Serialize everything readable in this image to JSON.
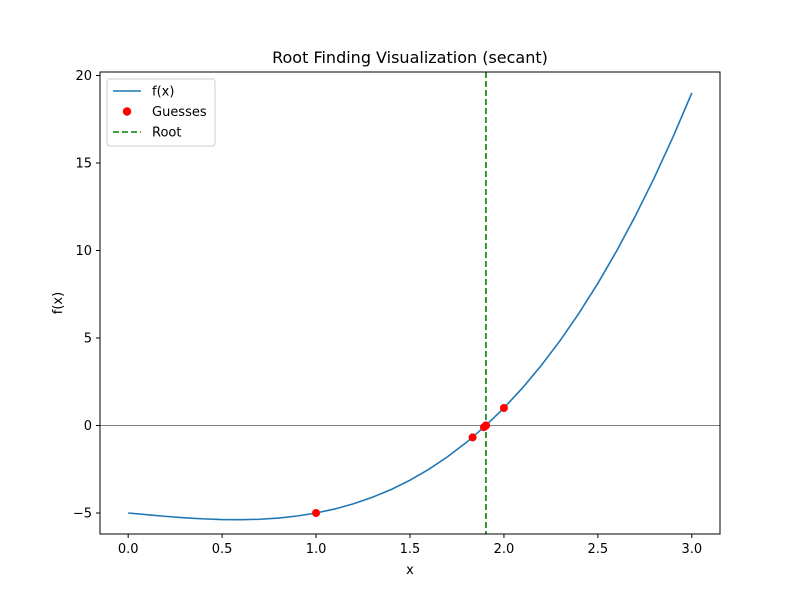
{
  "chart_data": {
    "type": "line",
    "title": "Root Finding Visualization (secant)",
    "xlabel": "x",
    "ylabel": "f(x)",
    "xlim": [
      -0.15,
      3.15
    ],
    "ylim": [
      -6.2,
      20.2
    ],
    "xticks": [
      0.0,
      0.5,
      1.0,
      1.5,
      2.0,
      2.5,
      3.0
    ],
    "xtick_labels": [
      "0.0",
      "0.5",
      "1.0",
      "1.5",
      "2.0",
      "2.5",
      "3.0"
    ],
    "yticks": [
      -5,
      0,
      5,
      10,
      15,
      20
    ],
    "ytick_labels": [
      "−5",
      "0",
      "5",
      "10",
      "15",
      "20"
    ],
    "grid": false,
    "legend_position": "upper-left",
    "series": [
      {
        "name": "f(x)",
        "kind": "line",
        "color": "#1f77b4",
        "x": [
          0.0,
          0.1,
          0.2,
          0.3,
          0.4,
          0.5,
          0.6,
          0.7,
          0.8,
          0.9,
          1.0,
          1.1,
          1.2,
          1.3,
          1.4,
          1.5,
          1.6,
          1.7,
          1.8,
          1.9,
          2.0,
          2.1,
          2.2,
          2.3,
          2.4,
          2.5,
          2.6,
          2.7,
          2.8,
          2.9,
          3.0
        ],
        "y": [
          -5.0,
          -5.099,
          -5.192,
          -5.273,
          -5.336,
          -5.375,
          -5.384,
          -5.357,
          -5.288,
          -5.171,
          -5.0,
          -4.769,
          -4.472,
          -4.103,
          -3.656,
          -3.125,
          -2.504,
          -1.787,
          -0.968,
          -0.041,
          1.0,
          2.161,
          3.448,
          4.867,
          6.424,
          8.125,
          9.976,
          11.983,
          14.152,
          16.489,
          19.0
        ]
      },
      {
        "name": "Guesses",
        "kind": "scatter",
        "color": "#ff0000",
        "x": [
          1.0,
          2.0,
          1.8333,
          1.8937,
          1.9042,
          1.9042
        ],
        "y": [
          -5.0,
          1.0,
          -0.6806,
          -0.0974,
          0.0,
          0.0
        ]
      },
      {
        "name": "Root",
        "kind": "vline",
        "color": "#008000",
        "x": 1.9042
      }
    ],
    "hline_y": 0
  }
}
